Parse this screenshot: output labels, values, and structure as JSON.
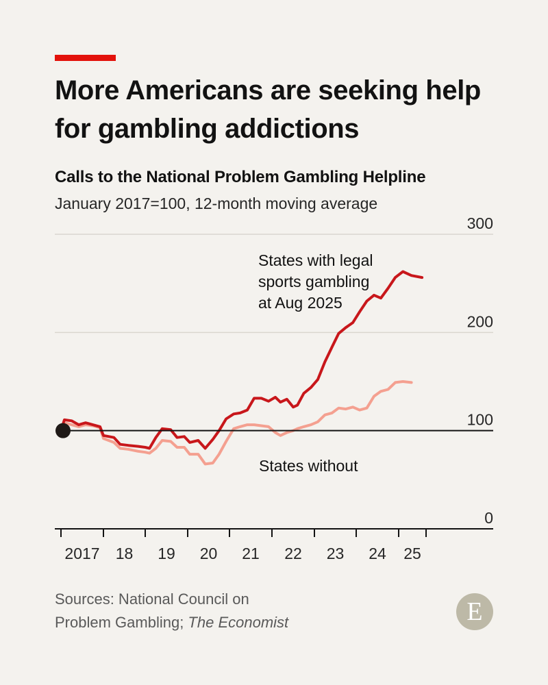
{
  "header": {
    "title": "More Americans are seeking help for gambling addictions"
  },
  "chart_data": {
    "type": "line",
    "title": "Calls to the National Problem Gambling Helpline",
    "subtitle": "January 2017=100, 12-month moving average",
    "ylim": [
      0,
      300
    ],
    "xlim": [
      2017.0,
      2025.75
    ],
    "yticks": [
      0,
      100,
      200,
      300
    ],
    "ytick_labels": [
      "0",
      "100",
      "200",
      "300"
    ],
    "xticks": [
      2017,
      2018,
      2019,
      2020,
      2021,
      2022,
      2023,
      2024,
      2025
    ],
    "xtick_labels": [
      "2017",
      "18",
      "19",
      "20",
      "21",
      "22",
      "23",
      "24",
      "25"
    ],
    "grid": true,
    "baseline": 100,
    "annotations": [
      {
        "series": 0,
        "text": [
          "States with legal",
          "sports gambling",
          "at Aug 2025"
        ]
      },
      {
        "series": 1,
        "text": [
          "States without"
        ]
      }
    ],
    "series": [
      {
        "label": "States with legal sports gambling at Aug 2025",
        "color": "#c8171b",
        "points": [
          [
            2017.0,
            100
          ],
          [
            2017.08,
            111
          ],
          [
            2017.25,
            110
          ],
          [
            2017.42,
            106
          ],
          [
            2017.58,
            108
          ],
          [
            2017.75,
            106
          ],
          [
            2017.92,
            104
          ],
          [
            2018.0,
            95
          ],
          [
            2018.25,
            93
          ],
          [
            2018.4,
            86
          ],
          [
            2018.6,
            85
          ],
          [
            2018.83,
            84
          ],
          [
            2019.0,
            83
          ],
          [
            2019.1,
            82
          ],
          [
            2019.25,
            93
          ],
          [
            2019.4,
            102
          ],
          [
            2019.6,
            101
          ],
          [
            2019.75,
            93
          ],
          [
            2019.92,
            94
          ],
          [
            2020.05,
            88
          ],
          [
            2020.25,
            90
          ],
          [
            2020.42,
            82
          ],
          [
            2020.6,
            91
          ],
          [
            2020.75,
            100
          ],
          [
            2020.92,
            112
          ],
          [
            2021.1,
            117
          ],
          [
            2021.25,
            118
          ],
          [
            2021.42,
            121
          ],
          [
            2021.58,
            133
          ],
          [
            2021.75,
            133
          ],
          [
            2021.92,
            130
          ],
          [
            2022.08,
            134
          ],
          [
            2022.2,
            129
          ],
          [
            2022.35,
            132
          ],
          [
            2022.5,
            124
          ],
          [
            2022.6,
            126
          ],
          [
            2022.75,
            138
          ],
          [
            2022.92,
            144
          ],
          [
            2023.08,
            152
          ],
          [
            2023.25,
            170
          ],
          [
            2023.42,
            185
          ],
          [
            2023.58,
            199
          ],
          [
            2023.75,
            205
          ],
          [
            2023.92,
            210
          ],
          [
            2024.08,
            221
          ],
          [
            2024.25,
            232
          ],
          [
            2024.42,
            238
          ],
          [
            2024.58,
            235
          ],
          [
            2024.75,
            245
          ],
          [
            2024.92,
            256
          ],
          [
            2025.1,
            262
          ],
          [
            2025.3,
            258
          ],
          [
            2025.55,
            256
          ]
        ]
      },
      {
        "label": "States without",
        "color": "#f4a090",
        "points": [
          [
            2017.0,
            100
          ],
          [
            2017.08,
            108
          ],
          [
            2017.25,
            106
          ],
          [
            2017.42,
            104
          ],
          [
            2017.58,
            106
          ],
          [
            2017.75,
            105
          ],
          [
            2017.92,
            103
          ],
          [
            2018.0,
            92
          ],
          [
            2018.25,
            88
          ],
          [
            2018.4,
            82
          ],
          [
            2018.6,
            81
          ],
          [
            2018.83,
            79
          ],
          [
            2019.0,
            78
          ],
          [
            2019.1,
            77
          ],
          [
            2019.25,
            82
          ],
          [
            2019.4,
            90
          ],
          [
            2019.6,
            89
          ],
          [
            2019.75,
            83
          ],
          [
            2019.92,
            83
          ],
          [
            2020.05,
            76
          ],
          [
            2020.25,
            76
          ],
          [
            2020.42,
            66
          ],
          [
            2020.6,
            67
          ],
          [
            2020.75,
            76
          ],
          [
            2020.92,
            89
          ],
          [
            2021.1,
            102
          ],
          [
            2021.25,
            104
          ],
          [
            2021.42,
            106
          ],
          [
            2021.58,
            106
          ],
          [
            2021.75,
            105
          ],
          [
            2021.92,
            104
          ],
          [
            2022.08,
            98
          ],
          [
            2022.2,
            95
          ],
          [
            2022.35,
            98
          ],
          [
            2022.5,
            100
          ],
          [
            2022.6,
            102
          ],
          [
            2022.75,
            104
          ],
          [
            2022.92,
            106
          ],
          [
            2023.08,
            109
          ],
          [
            2023.25,
            116
          ],
          [
            2023.42,
            118
          ],
          [
            2023.58,
            123
          ],
          [
            2023.75,
            122
          ],
          [
            2023.92,
            124
          ],
          [
            2024.08,
            121
          ],
          [
            2024.25,
            123
          ],
          [
            2024.42,
            135
          ],
          [
            2024.58,
            140
          ],
          [
            2024.75,
            142
          ],
          [
            2024.92,
            149
          ],
          [
            2025.1,
            150
          ],
          [
            2025.3,
            149
          ]
        ]
      }
    ]
  },
  "footer": {
    "sources_line1": "Sources: National Council on",
    "sources_line2_prefix": "Problem Gambling; ",
    "sources_line2_publisher": "The Economist",
    "logo_letter": "E"
  },
  "colors": {
    "background": "#f4f2ee",
    "accent": "#e3120b",
    "series_main": "#c8171b",
    "series_secondary": "#f4a090",
    "gridline": "#d9d6cf",
    "axis": "#121212"
  }
}
